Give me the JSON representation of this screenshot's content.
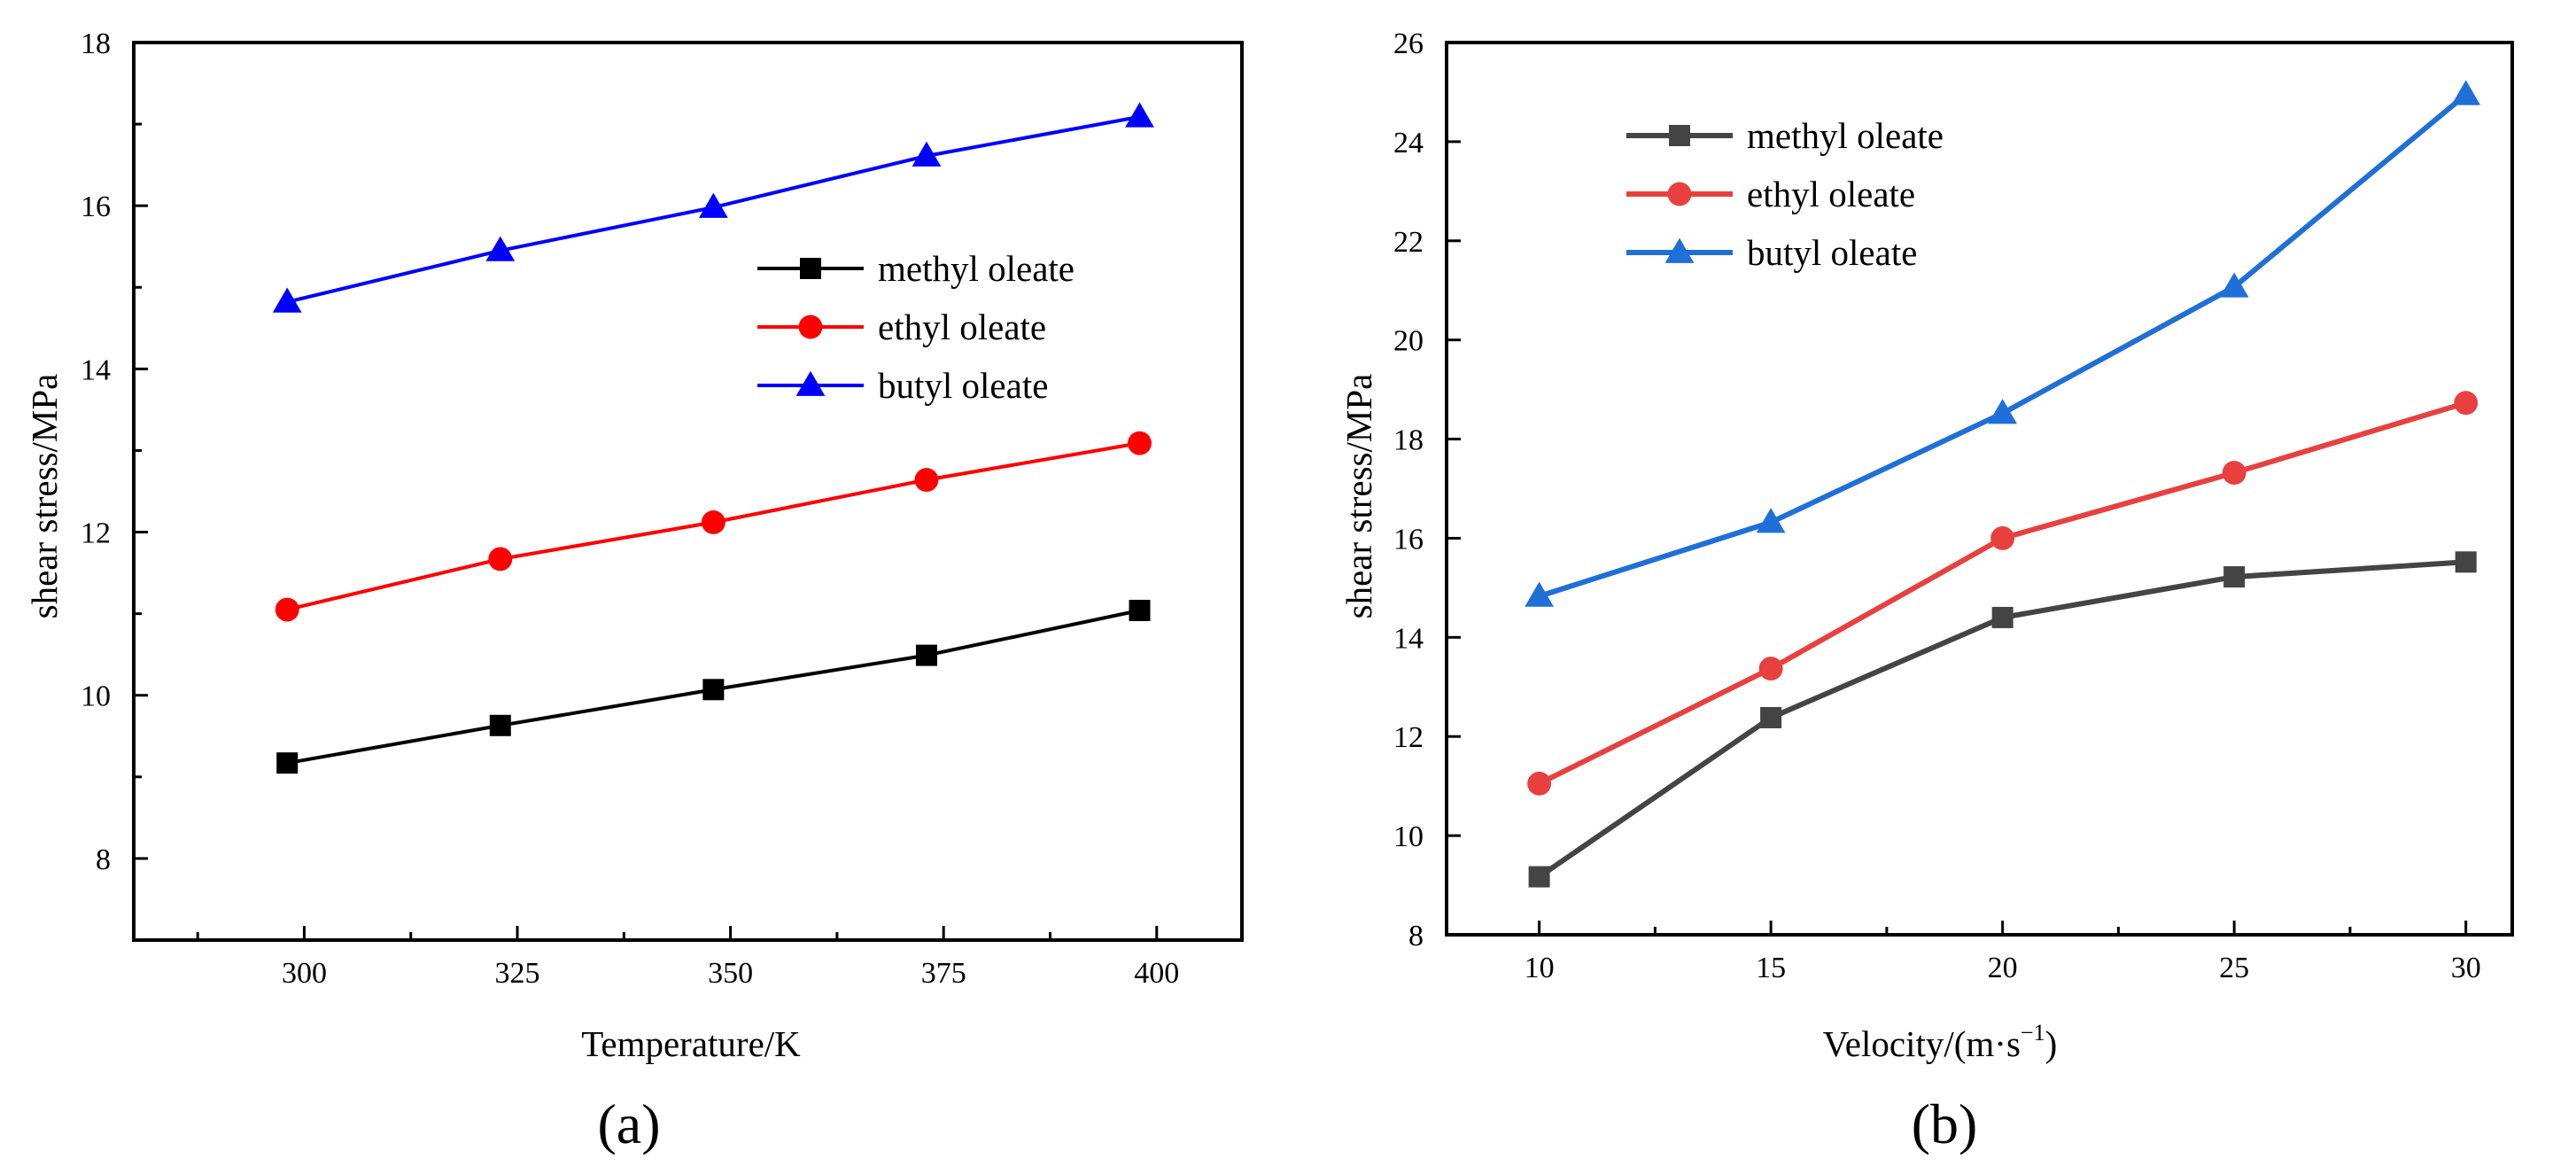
{
  "chart_data": [
    {
      "type": "line",
      "panel_label": "(a)",
      "xlabel": "Temperature/K",
      "ylabel": "shear stress/MPa",
      "xlim": [
        280,
        410
      ],
      "ylim": [
        7,
        18
      ],
      "xticks": [
        300,
        325,
        350,
        375,
        400
      ],
      "yticks": [
        8,
        10,
        12,
        14,
        16,
        18
      ],
      "grid": false,
      "legend_position": "right-center",
      "x": [
        298,
        323,
        348,
        373,
        398
      ],
      "series": [
        {
          "name": "methyl oleate",
          "marker": "square",
          "color": "#000000",
          "values": [
            9.17,
            9.63,
            10.07,
            10.49,
            11.04
          ]
        },
        {
          "name": "ethyl oleate",
          "marker": "circle",
          "color": "#ff0000",
          "values": [
            11.05,
            11.67,
            12.12,
            12.64,
            13.09
          ]
        },
        {
          "name": "butyl oleate",
          "marker": "triangle",
          "color": "#0000ff",
          "values": [
            14.82,
            15.45,
            15.98,
            16.61,
            17.09
          ]
        }
      ]
    },
    {
      "type": "line",
      "panel_label": "(b)",
      "xlabel": "Velocity/(m·s",
      "xlabel_superscript": "−1",
      "xlabel_suffix": ")",
      "ylabel": "shear stress/MPa",
      "xlim": [
        8,
        31
      ],
      "ylim": [
        8,
        26
      ],
      "xticks": [
        10,
        15,
        20,
        25,
        30
      ],
      "yticks": [
        8,
        10,
        12,
        14,
        16,
        18,
        20,
        22,
        24,
        26
      ],
      "grid": false,
      "legend_position": "top-left",
      "x": [
        10,
        15,
        20,
        25,
        30
      ],
      "series": [
        {
          "name": "methyl oleate",
          "marker": "square",
          "color": "#444444",
          "values": [
            9.17,
            12.38,
            14.4,
            15.22,
            15.52
          ]
        },
        {
          "name": "ethyl oleate",
          "marker": "circle",
          "color": "#e8403f",
          "values": [
            11.05,
            13.37,
            16.0,
            17.32,
            18.73
          ]
        },
        {
          "name": "butyl oleate",
          "marker": "triangle",
          "color": "#1f6fd9",
          "values": [
            14.83,
            16.32,
            18.52,
            21.07,
            24.95
          ]
        }
      ]
    }
  ]
}
